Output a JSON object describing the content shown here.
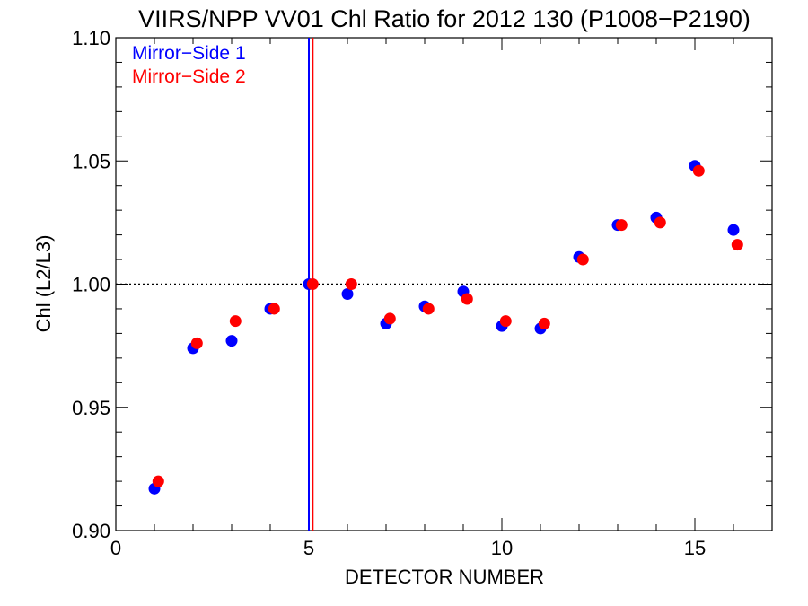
{
  "chart_data": {
    "type": "scatter",
    "title": "VIIRS/NPP VV01 Chl Ratio for 2012 130 (P1008−P2190)",
    "xlabel": "DETECTOR NUMBER",
    "ylabel": "Chl (L2/L3)",
    "xlim": [
      0,
      17
    ],
    "ylim": [
      0.9,
      1.1
    ],
    "xticks": [
      0,
      5,
      10,
      15
    ],
    "xtick_labels": [
      "0",
      "5",
      "10",
      "15"
    ],
    "yticks": [
      0.9,
      0.95,
      1.0,
      1.05,
      1.1
    ],
    "ytick_labels": [
      "0.90",
      "0.95",
      "1.00",
      "1.05",
      "1.10"
    ],
    "grid": false,
    "legend_position": "top-left",
    "reference_line": {
      "y": 1.0,
      "style": "dotted",
      "color": "#000000"
    },
    "vertical_lines": [
      {
        "x": 5.0,
        "color": "#0000ff"
      },
      {
        "x": 5.1,
        "color": "#ff0000"
      }
    ],
    "series": [
      {
        "name": "Mirror−Side 1",
        "color": "#0000ff",
        "x": [
          1,
          2,
          3,
          4,
          5,
          6,
          7,
          8,
          9,
          10,
          11,
          12,
          13,
          14,
          15,
          16
        ],
        "y": [
          0.917,
          0.974,
          0.977,
          0.99,
          1.0,
          0.996,
          0.984,
          0.991,
          0.997,
          0.983,
          0.982,
          1.011,
          1.024,
          1.027,
          1.048,
          1.022
        ]
      },
      {
        "name": "Mirror−Side 2",
        "color": "#ff0000",
        "x": [
          1.1,
          2.1,
          3.1,
          4.1,
          5.1,
          6.1,
          7.1,
          8.1,
          9.1,
          10.1,
          11.1,
          12.1,
          13.1,
          14.1,
          15.1,
          16.1
        ],
        "y": [
          0.92,
          0.976,
          0.985,
          0.99,
          1.0,
          1.0,
          0.986,
          0.99,
          0.994,
          0.985,
          0.984,
          1.01,
          1.024,
          1.025,
          1.046,
          1.016
        ]
      }
    ]
  }
}
